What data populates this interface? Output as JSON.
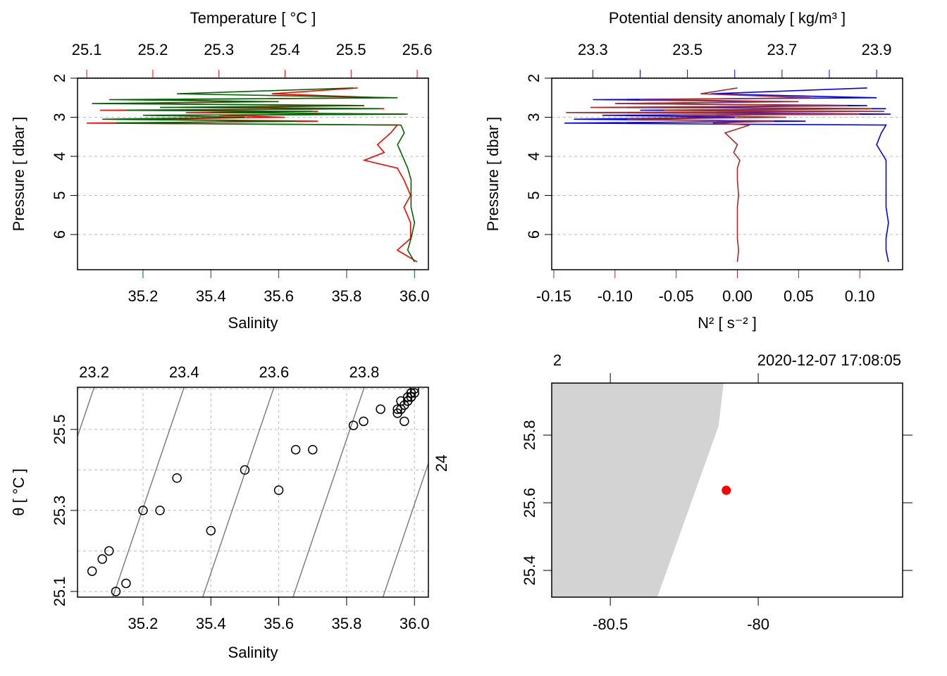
{
  "chart_data": [
    {
      "type": "profile",
      "y_label": "Pressure [ dbar ]",
      "ylim": [
        6.9,
        2
      ],
      "yticks": [
        2,
        3,
        4,
        5,
        6
      ],
      "grid": true,
      "pressure": [
        2.25,
        2.4,
        2.5,
        2.55,
        2.6,
        2.65,
        2.7,
        2.75,
        2.78,
        2.82,
        2.85,
        2.88,
        2.92,
        2.95,
        3.0,
        3.05,
        3.1,
        3.15,
        3.2,
        3.4,
        3.7,
        3.9,
        4.1,
        4.3,
        4.6,
        5.0,
        5.3,
        5.7,
        6.1,
        6.4,
        6.7
      ],
      "bottom": {
        "label": "Salinity",
        "color": "#006400",
        "xlim": [
          35.007,
          36.041
        ],
        "xticks": [
          35.2,
          35.4,
          35.6,
          35.8,
          {
            "value": 36,
            "label": "36.0"
          }
        ],
        "values": [
          35.82,
          35.3,
          35.95,
          35.1,
          35.6,
          35.05,
          35.85,
          35.25,
          35.9,
          35.15,
          35.7,
          35.4,
          35.98,
          35.2,
          35.5,
          35.08,
          35.65,
          35.12,
          35.96,
          35.97,
          35.95,
          35.96,
          35.97,
          35.98,
          35.99,
          35.99,
          35.99,
          36.0,
          35.99,
          35.98,
          36.0
        ]
      },
      "top": {
        "label": "Temperature [ °C ]",
        "color": "#ff0000",
        "xlim": [
          25.086,
          25.617
        ],
        "xticks": [
          25.1,
          25.2,
          25.3,
          25.4,
          25.5,
          25.6
        ],
        "values": [
          25.51,
          25.38,
          25.55,
          25.2,
          25.35,
          25.15,
          25.52,
          25.3,
          25.55,
          25.12,
          25.45,
          25.25,
          25.58,
          25.3,
          25.4,
          25.18,
          25.45,
          25.1,
          25.57,
          25.56,
          25.54,
          25.55,
          25.52,
          25.57,
          25.58,
          25.59,
          25.58,
          25.59,
          25.59,
          25.57,
          25.6
        ]
      }
    },
    {
      "type": "profile",
      "y_label": "Pressure [ dbar ]",
      "ylim": [
        6.9,
        2
      ],
      "yticks": [
        2,
        3,
        4,
        5,
        6
      ],
      "grid": true,
      "bottom": {
        "label": "N² [ s⁻² ]",
        "color": "#a52a2a",
        "xlim": [
          -0.1517,
          0.135
        ],
        "xticks": [
          -0.15,
          {
            "value": -0.1,
            "label": "-0.10"
          },
          -0.05,
          {
            "value": 0,
            "label": "0.00"
          },
          0.05,
          {
            "value": 0.1,
            "label": "0.10"
          }
        ],
        "values": [
          0.0,
          -0.03,
          0.06,
          -0.08,
          0.05,
          -0.1,
          0.09,
          -0.12,
          0.11,
          -0.06,
          0.12,
          -0.14,
          0.1,
          -0.05,
          0.04,
          -0.09,
          0.03,
          -0.02,
          0.01,
          -0.01,
          0.0,
          -0.003,
          0.002,
          0.0,
          0.0,
          0.001,
          0.0,
          0.0,
          0.0,
          0.001,
          0.0
        ]
      },
      "top": {
        "label": "Potential density anomaly [ kg/m³ ]",
        "color": "#0000ff",
        "xlim": [
          23.213,
          23.955
        ],
        "xticks": [
          23.3,
          23.5,
          23.7,
          23.9
        ],
        "minor_ticks": [
          23.4,
          23.6,
          23.8
        ],
        "values": [
          23.88,
          23.55,
          23.9,
          23.3,
          23.7,
          23.35,
          23.88,
          23.45,
          23.92,
          23.4,
          23.82,
          23.5,
          23.93,
          23.32,
          23.6,
          23.26,
          23.75,
          23.24,
          23.92,
          23.91,
          23.9,
          23.91,
          23.92,
          23.92,
          23.92,
          23.92,
          23.92,
          23.925,
          23.92,
          23.92,
          23.925
        ]
      }
    },
    {
      "type": "scatter",
      "x_label": "Salinity",
      "y_label": "θ [ °C ]",
      "xlim": [
        35.007,
        36.041
      ],
      "xticks": [
        35.2,
        35.4,
        35.6,
        35.8,
        {
          "value": 36,
          "label": "36.0"
        }
      ],
      "ylim": [
        25.086,
        25.604
      ],
      "yticks": [
        25.1,
        25.3,
        25.5
      ],
      "grid_y": [
        25.2,
        25.4,
        25.6
      ],
      "grid": true,
      "isopycnals": [
        {
          "level": 23.2,
          "salinity_at_ylim": [
            34.846,
            35.056
          ]
        },
        {
          "level": 23.4,
          "salinity_at_ylim": [
            35.111,
            35.321
          ]
        },
        {
          "level": 23.6,
          "salinity_at_ylim": [
            35.376,
            35.586
          ]
        },
        {
          "level": 23.8,
          "salinity_at_ylim": [
            35.642,
            35.852
          ]
        },
        {
          "level": 24,
          "salinity_at_ylim": [
            35.907,
            36.117
          ]
        }
      ]
    },
    {
      "type": "map",
      "station": "2",
      "time": "2020-12-07 17:08:05",
      "xlim": [
        -80.698,
        -79.512
      ],
      "ylim": [
        25.321,
        25.954
      ],
      "xticks": [
        -80.5,
        -80
      ],
      "yticks": [
        25.4,
        25.6,
        25.8
      ],
      "land_color": "#d3d3d3",
      "coastline": {
        "lon": [
          -80.698,
          -80.117,
          -80.134,
          -80.341,
          -80.698
        ],
        "lat": [
          25.954,
          25.954,
          25.827,
          25.321,
          25.321
        ]
      },
      "station_point": {
        "lon": -80.108,
        "lat": 25.637,
        "color": "#ff0000"
      }
    }
  ]
}
